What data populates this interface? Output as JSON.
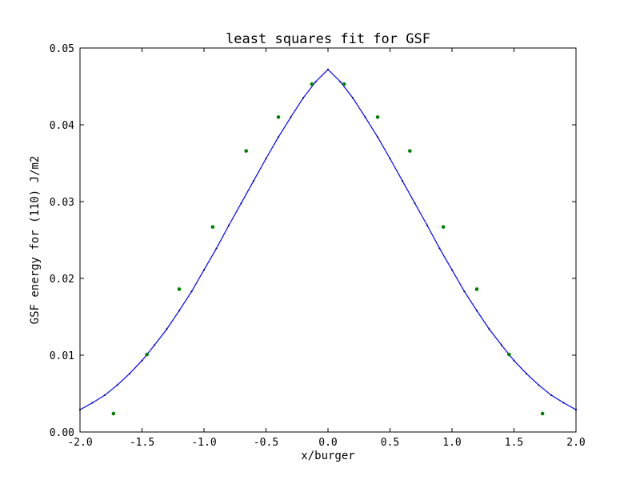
{
  "chart_data": {
    "type": "line",
    "title": "least squares fit for GSF",
    "xlabel": "x/burger",
    "ylabel": "GSF energy for (110) J/m2",
    "xlim": [
      -2.0,
      2.0
    ],
    "ylim": [
      0.0,
      0.05
    ],
    "x_ticks": [
      "-2.0",
      "-1.5",
      "-1.0",
      "-0.5",
      "0.0",
      "0.5",
      "1.0",
      "1.5",
      "2.0"
    ],
    "y_ticks": [
      "0.00",
      "0.01",
      "0.02",
      "0.03",
      "0.04",
      "0.05"
    ],
    "grid": false,
    "legend": "none",
    "series": [
      {
        "kind": "line",
        "color": "#0000ff",
        "x": [
          -2.0,
          -1.9,
          -1.8,
          -1.7,
          -1.6,
          -1.5,
          -1.4,
          -1.3,
          -1.2,
          -1.1,
          -1.0,
          -0.9,
          -0.8,
          -0.7,
          -0.6,
          -0.5,
          -0.4,
          -0.3,
          -0.2,
          -0.1,
          0.0,
          0.1,
          0.2,
          0.3,
          0.4,
          0.5,
          0.6,
          0.7,
          0.8,
          0.9,
          1.0,
          1.1,
          1.2,
          1.3,
          1.4,
          1.5,
          1.6,
          1.7,
          1.8,
          1.9,
          2.0
        ],
        "y": [
          0.0029,
          0.0038,
          0.0048,
          0.0061,
          0.0076,
          0.0093,
          0.0113,
          0.0134,
          0.0158,
          0.0183,
          0.0211,
          0.0239,
          0.0269,
          0.0298,
          0.0327,
          0.0356,
          0.0384,
          0.041,
          0.0435,
          0.0456,
          0.0472,
          0.0456,
          0.0435,
          0.041,
          0.0384,
          0.0356,
          0.0327,
          0.0298,
          0.0269,
          0.0239,
          0.0211,
          0.0183,
          0.0158,
          0.0134,
          0.0113,
          0.0093,
          0.0076,
          0.0061,
          0.0048,
          0.0038,
          0.0029
        ]
      },
      {
        "kind": "scatter",
        "color": "#008000",
        "x": [
          -1.73,
          -1.46,
          -1.2,
          -0.93,
          -0.66,
          -0.4,
          -0.13,
          0.13,
          0.4,
          0.66,
          0.93,
          1.2,
          1.46,
          1.73
        ],
        "y": [
          0.0024,
          0.0101,
          0.0186,
          0.0267,
          0.0366,
          0.041,
          0.0453,
          0.0453,
          0.041,
          0.0366,
          0.0267,
          0.0186,
          0.0101,
          0.0024
        ]
      }
    ]
  }
}
